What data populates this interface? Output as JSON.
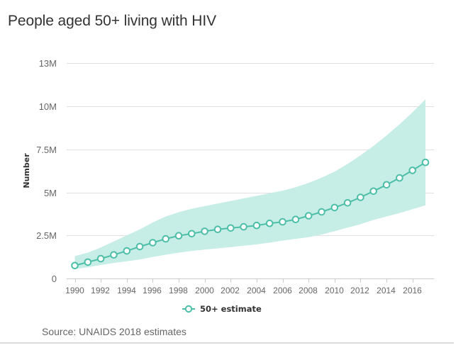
{
  "title": "People aged 50+ living with HIV",
  "source": "Source: UNAIDS 2018 estimates",
  "legend": {
    "label": "50+ estimate"
  },
  "colors": {
    "line": "#4dbfa8",
    "band": "#c4ece6",
    "grid": "#e0e0e0",
    "axis": "#cccccc"
  },
  "chart_data": {
    "type": "line",
    "title": "People aged 50+ living with HIV",
    "xlabel": "",
    "ylabel": "Number",
    "x": [
      1990,
      1991,
      1992,
      1993,
      1994,
      1995,
      1996,
      1997,
      1998,
      1999,
      2000,
      2001,
      2002,
      2003,
      2004,
      2005,
      2006,
      2007,
      2008,
      2009,
      2010,
      2011,
      2012,
      2013,
      2014,
      2015,
      2016,
      2017
    ],
    "series": [
      {
        "name": "50+ estimate",
        "values": [
          0.75,
          0.95,
          1.15,
          1.37,
          1.6,
          1.85,
          2.08,
          2.3,
          2.48,
          2.6,
          2.74,
          2.85,
          2.93,
          3.0,
          3.08,
          3.2,
          3.29,
          3.43,
          3.64,
          3.87,
          4.12,
          4.39,
          4.71,
          5.07,
          5.44,
          5.84,
          6.28,
          6.74
        ],
        "unit": "million"
      }
    ],
    "band": {
      "name": "Uncertainty range",
      "upper": [
        1.3,
        1.5,
        1.8,
        2.15,
        2.5,
        2.85,
        3.25,
        3.6,
        3.85,
        4.05,
        4.2,
        4.35,
        4.5,
        4.65,
        4.8,
        4.95,
        5.1,
        5.3,
        5.55,
        5.85,
        6.2,
        6.65,
        7.15,
        7.7,
        8.3,
        8.95,
        9.65,
        10.4
      ],
      "lower": [
        0.55,
        0.65,
        0.78,
        0.9,
        1.0,
        1.1,
        1.25,
        1.38,
        1.5,
        1.6,
        1.68,
        1.75,
        1.82,
        1.9,
        1.98,
        2.08,
        2.2,
        2.3,
        2.4,
        2.55,
        2.75,
        2.95,
        3.15,
        3.4,
        3.6,
        3.8,
        4.02,
        4.25
      ],
      "unit": "million"
    },
    "yticks": [
      {
        "value": 0,
        "label": "0"
      },
      {
        "value": 2.5,
        "label": "2.5M"
      },
      {
        "value": 5,
        "label": "5M"
      },
      {
        "value": 7.5,
        "label": "7.5M"
      },
      {
        "value": 10,
        "label": "10M"
      },
      {
        "value": 12.5,
        "label": "13M"
      }
    ],
    "xticks": [
      1990,
      1992,
      1994,
      1996,
      1998,
      2000,
      2002,
      2004,
      2006,
      2008,
      2010,
      2012,
      2014,
      2016
    ],
    "ylim": [
      0,
      12.5
    ],
    "xlim": [
      1989.2,
      2017.6
    ],
    "grid": true,
    "legend_position": "bottom-center"
  }
}
